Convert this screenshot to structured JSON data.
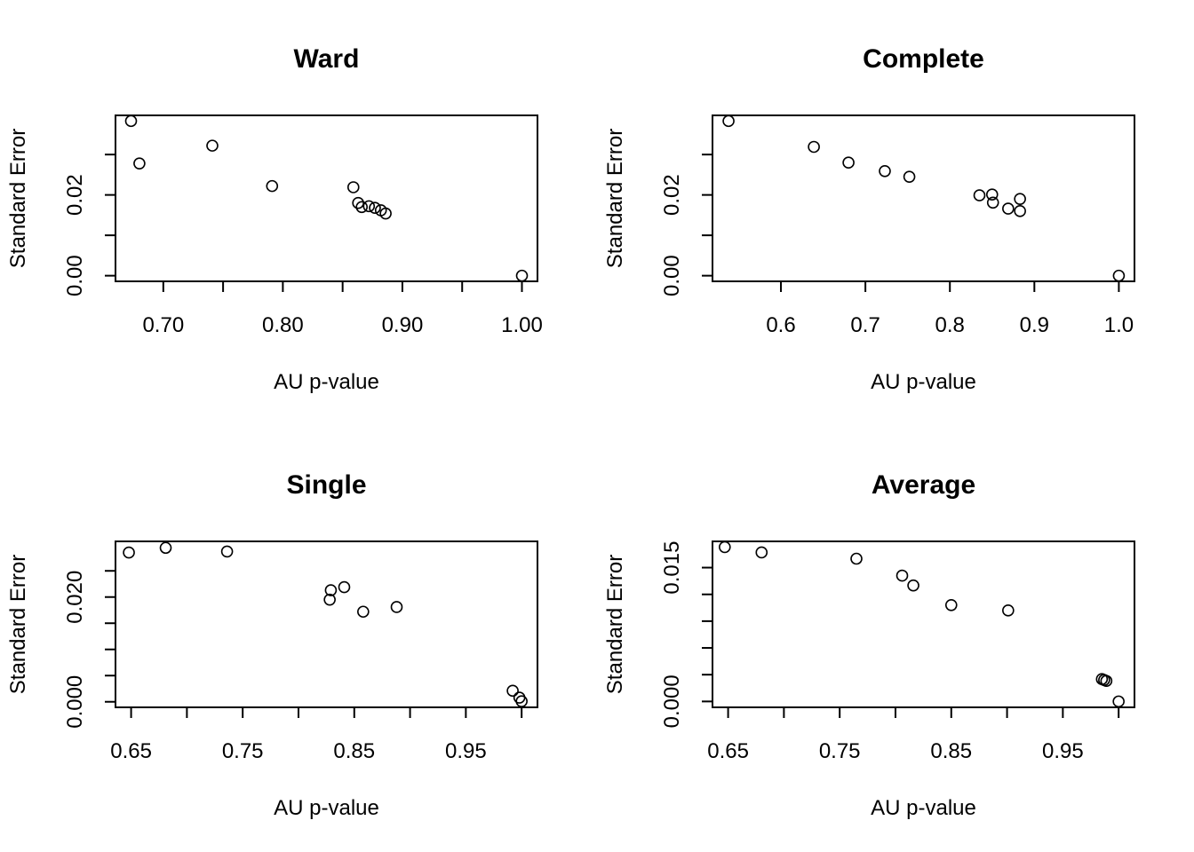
{
  "chart_data": [
    {
      "type": "scatter",
      "title": "Ward",
      "xlabel": "AU p-value",
      "ylabel": "Standard Error",
      "xlim": [
        0.66,
        1.013
      ],
      "ylim": [
        -0.0014,
        0.0397
      ],
      "xticks": [
        0.7,
        0.75,
        0.8,
        0.85,
        0.9,
        0.95,
        1.0
      ],
      "xtick_labels": [
        "0.70",
        "",
        "0.80",
        "",
        "0.90",
        "",
        "1.00"
      ],
      "yticks": [
        0.0,
        0.01,
        0.02,
        0.03
      ],
      "ytick_labels": [
        "0.00",
        "",
        "0.02",
        ""
      ],
      "grid": false,
      "points": [
        {
          "x": 0.673,
          "y": 0.0383
        },
        {
          "x": 0.68,
          "y": 0.0278
        },
        {
          "x": 0.741,
          "y": 0.0322
        },
        {
          "x": 0.791,
          "y": 0.0222
        },
        {
          "x": 0.859,
          "y": 0.0219
        },
        {
          "x": 0.863,
          "y": 0.018
        },
        {
          "x": 0.866,
          "y": 0.017
        },
        {
          "x": 0.872,
          "y": 0.0172
        },
        {
          "x": 0.877,
          "y": 0.0168
        },
        {
          "x": 0.882,
          "y": 0.0162
        },
        {
          "x": 0.886,
          "y": 0.0154
        },
        {
          "x": 1.0,
          "y": 0.0
        }
      ]
    },
    {
      "type": "scatter",
      "title": "Complete",
      "xlabel": "AU p-value",
      "ylabel": "Standard Error",
      "xlim": [
        0.519,
        1.0185
      ],
      "ylim": [
        -0.0014,
        0.0397
      ],
      "xticks": [
        0.6,
        0.7,
        0.8,
        0.9,
        1.0
      ],
      "xtick_labels": [
        "0.6",
        "0.7",
        "0.8",
        "0.9",
        "1.0"
      ],
      "yticks": [
        0.0,
        0.01,
        0.02,
        0.03
      ],
      "ytick_labels": [
        "0.00",
        "",
        "0.02",
        ""
      ],
      "grid": false,
      "points": [
        {
          "x": 0.538,
          "y": 0.0383
        },
        {
          "x": 0.639,
          "y": 0.0319
        },
        {
          "x": 0.68,
          "y": 0.028
        },
        {
          "x": 0.723,
          "y": 0.0259
        },
        {
          "x": 0.752,
          "y": 0.0245
        },
        {
          "x": 0.835,
          "y": 0.0199
        },
        {
          "x": 0.85,
          "y": 0.0201
        },
        {
          "x": 0.851,
          "y": 0.0181
        },
        {
          "x": 0.869,
          "y": 0.0166
        },
        {
          "x": 0.883,
          "y": 0.019
        },
        {
          "x": 0.883,
          "y": 0.016
        },
        {
          "x": 1.0,
          "y": 0.0
        }
      ]
    },
    {
      "type": "scatter",
      "title": "Single",
      "xlabel": "AU p-value",
      "ylabel": "Standard Error",
      "xlim": [
        0.636,
        1.0142
      ],
      "ylim": [
        -0.00106,
        0.03063
      ],
      "xticks": [
        0.65,
        0.7,
        0.75,
        0.8,
        0.85,
        0.9,
        0.95,
        1.0
      ],
      "xtick_labels": [
        "0.65",
        "",
        "0.75",
        "",
        "0.85",
        "",
        "0.95",
        ""
      ],
      "yticks": [
        0.0,
        0.005,
        0.01,
        0.015,
        0.02,
        0.025
      ],
      "ytick_labels": [
        "0.000",
        "",
        "",
        "",
        "0.020",
        ""
      ],
      "grid": false,
      "points": [
        {
          "x": 0.648,
          "y": 0.0285
        },
        {
          "x": 0.681,
          "y": 0.0294
        },
        {
          "x": 0.736,
          "y": 0.0287
        },
        {
          "x": 0.828,
          "y": 0.0195
        },
        {
          "x": 0.829,
          "y": 0.0213
        },
        {
          "x": 0.841,
          "y": 0.0219
        },
        {
          "x": 0.858,
          "y": 0.0172
        },
        {
          "x": 0.888,
          "y": 0.0181
        },
        {
          "x": 0.992,
          "y": 0.0021
        },
        {
          "x": 0.998,
          "y": 0.0008
        },
        {
          "x": 1.0,
          "y": 0.0001
        }
      ]
    },
    {
      "type": "scatter",
      "title": "Average",
      "xlabel": "AU p-value",
      "ylabel": "Standard Error",
      "xlim": [
        0.636,
        1.0142
      ],
      "ylim": [
        -0.00066,
        0.01794
      ],
      "xticks": [
        0.65,
        0.7,
        0.75,
        0.8,
        0.85,
        0.9,
        0.95,
        1.0
      ],
      "xtick_labels": [
        "0.65",
        "",
        "0.75",
        "",
        "0.85",
        "",
        "0.95",
        ""
      ],
      "yticks": [
        0.0,
        0.003,
        0.006,
        0.009,
        0.012,
        0.015
      ],
      "ytick_labels": [
        "0.000",
        "",
        "",
        "",
        "",
        "0.015"
      ],
      "grid": false,
      "points": [
        {
          "x": 0.647,
          "y": 0.0173
        },
        {
          "x": 0.68,
          "y": 0.0167
        },
        {
          "x": 0.765,
          "y": 0.016
        },
        {
          "x": 0.806,
          "y": 0.0141
        },
        {
          "x": 0.816,
          "y": 0.013
        },
        {
          "x": 0.85,
          "y": 0.0108
        },
        {
          "x": 0.901,
          "y": 0.0102
        },
        {
          "x": 0.985,
          "y": 0.0025
        },
        {
          "x": 0.987,
          "y": 0.0024
        },
        {
          "x": 0.989,
          "y": 0.0023
        },
        {
          "x": 1.0,
          "y": 0.0
        }
      ]
    }
  ]
}
